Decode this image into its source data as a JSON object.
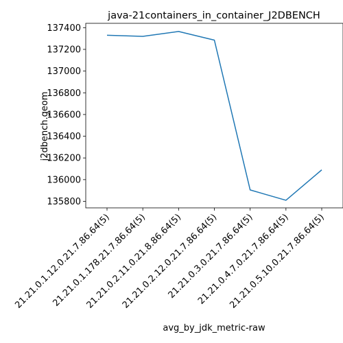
{
  "chart_data": {
    "type": "line",
    "title": "java-21containers_in_container_J2DBENCH",
    "xlabel": "avg_by_jdk_metric-raw",
    "ylabel": "j2dbench.geom",
    "categories": [
      "21.21.0.1.12.0.21.7.86.64(5)",
      "21.21.0.1.178.21.7.86.64(5)",
      "21.21.0.2.11.0.21.8.86.64(5)",
      "21.21.0.2.12.0.21.7.86.64(5)",
      "21.21.0.3.0.21.7.86.64(5)",
      "21.21.0.4.7.0.21.7.86.64(5)",
      "21.21.0.5.10.0.21.7.86.64(5)"
    ],
    "series": [
      {
        "values": [
          137330,
          137320,
          137365,
          137285,
          135905,
          135810,
          136090
        ],
        "color": "#1f77b4"
      }
    ],
    "yticks": [
      135800,
      136000,
      136200,
      136400,
      136600,
      136800,
      137000,
      137200,
      137400
    ],
    "ylim": [
      135740,
      137440
    ],
    "grid": false,
    "legend": "none"
  }
}
